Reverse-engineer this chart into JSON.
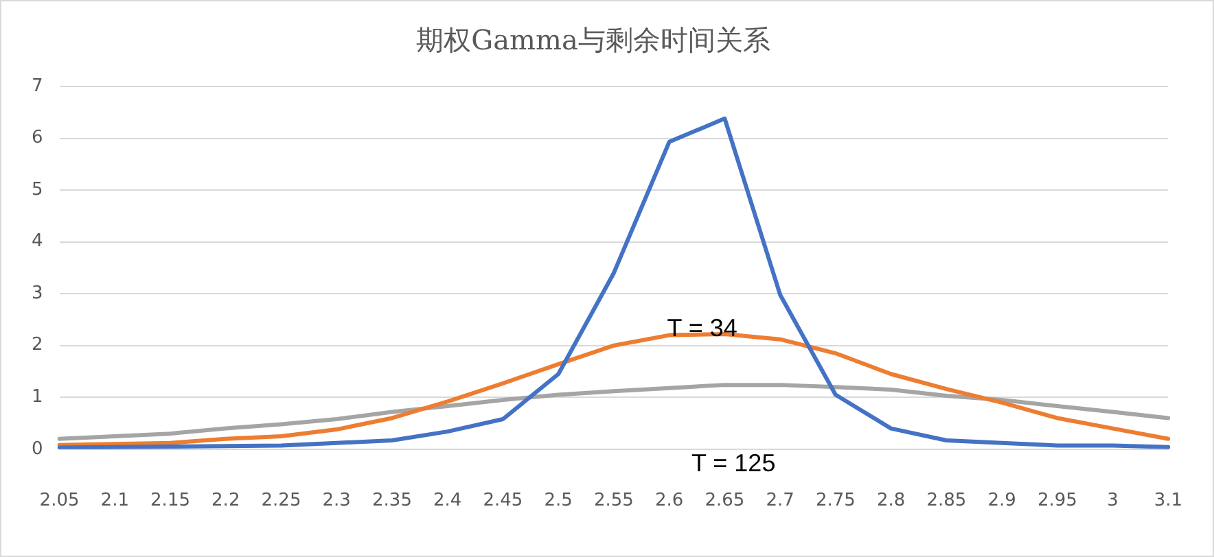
{
  "chart_data": {
    "type": "line",
    "title": "期权Gamma与剩余时间关系",
    "categories": [
      "2.05",
      "2.1",
      "2.15",
      "2.2",
      "2.25",
      "2.3",
      "2.35",
      "2.4",
      "2.45",
      "2.5",
      "2.55",
      "2.6",
      "2.65",
      "2.7",
      "2.75",
      "2.8",
      "2.85",
      "2.9",
      "2.95",
      "3",
      "3.1"
    ],
    "series": [
      {
        "color": "#4472c4",
        "values": [
          0.03,
          0.04,
          0.05,
          0.06,
          0.07,
          0.12,
          0.17,
          0.34,
          0.58,
          1.45,
          3.4,
          5.93,
          6.38,
          2.98,
          1.05,
          0.4,
          0.17,
          0.12,
          0.07,
          0.07,
          0.04
        ]
      },
      {
        "color": "#ed7d31",
        "values": [
          0.08,
          0.1,
          0.12,
          0.2,
          0.25,
          0.38,
          0.6,
          0.92,
          1.27,
          1.64,
          2.0,
          2.2,
          2.22,
          2.12,
          1.85,
          1.45,
          1.16,
          0.9,
          0.6,
          0.4,
          0.2
        ]
      },
      {
        "color": "#a5a5a5",
        "values": [
          0.2,
          0.25,
          0.3,
          0.4,
          0.48,
          0.58,
          0.72,
          0.83,
          0.95,
          1.05,
          1.12,
          1.18,
          1.24,
          1.24,
          1.2,
          1.15,
          1.03,
          0.95,
          0.83,
          0.72,
          0.6
        ]
      }
    ],
    "annotations": [
      "T = 34",
      "T = 125"
    ],
    "ylim": [
      0,
      7
    ],
    "yticks": [
      0,
      1,
      2,
      3,
      4,
      5,
      6,
      7
    ],
    "grid": "y",
    "legend": false,
    "marker": "none",
    "line_style": "solid"
  }
}
